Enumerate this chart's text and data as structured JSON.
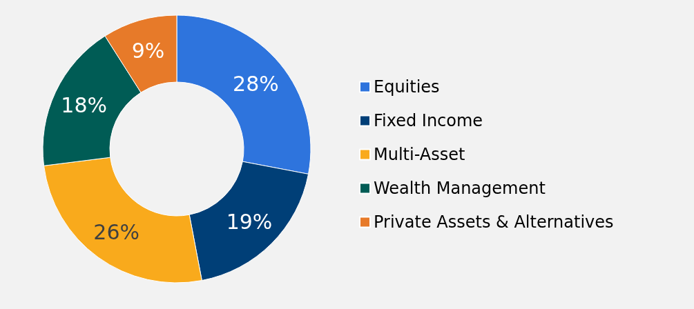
{
  "chart_data": {
    "type": "donut",
    "categories": [
      "Equities",
      "Fixed Income",
      "Multi-Asset",
      "Wealth Management",
      "Private Assets & Alternatives"
    ],
    "values": [
      28,
      19,
      26,
      18,
      9
    ],
    "colors": [
      "#2e74dd",
      "#003f77",
      "#f9aa1c",
      "#005c55",
      "#e77a29"
    ],
    "value_labels": [
      "28%",
      "19%",
      "26%",
      "18%",
      "9%"
    ],
    "legend": "right"
  }
}
